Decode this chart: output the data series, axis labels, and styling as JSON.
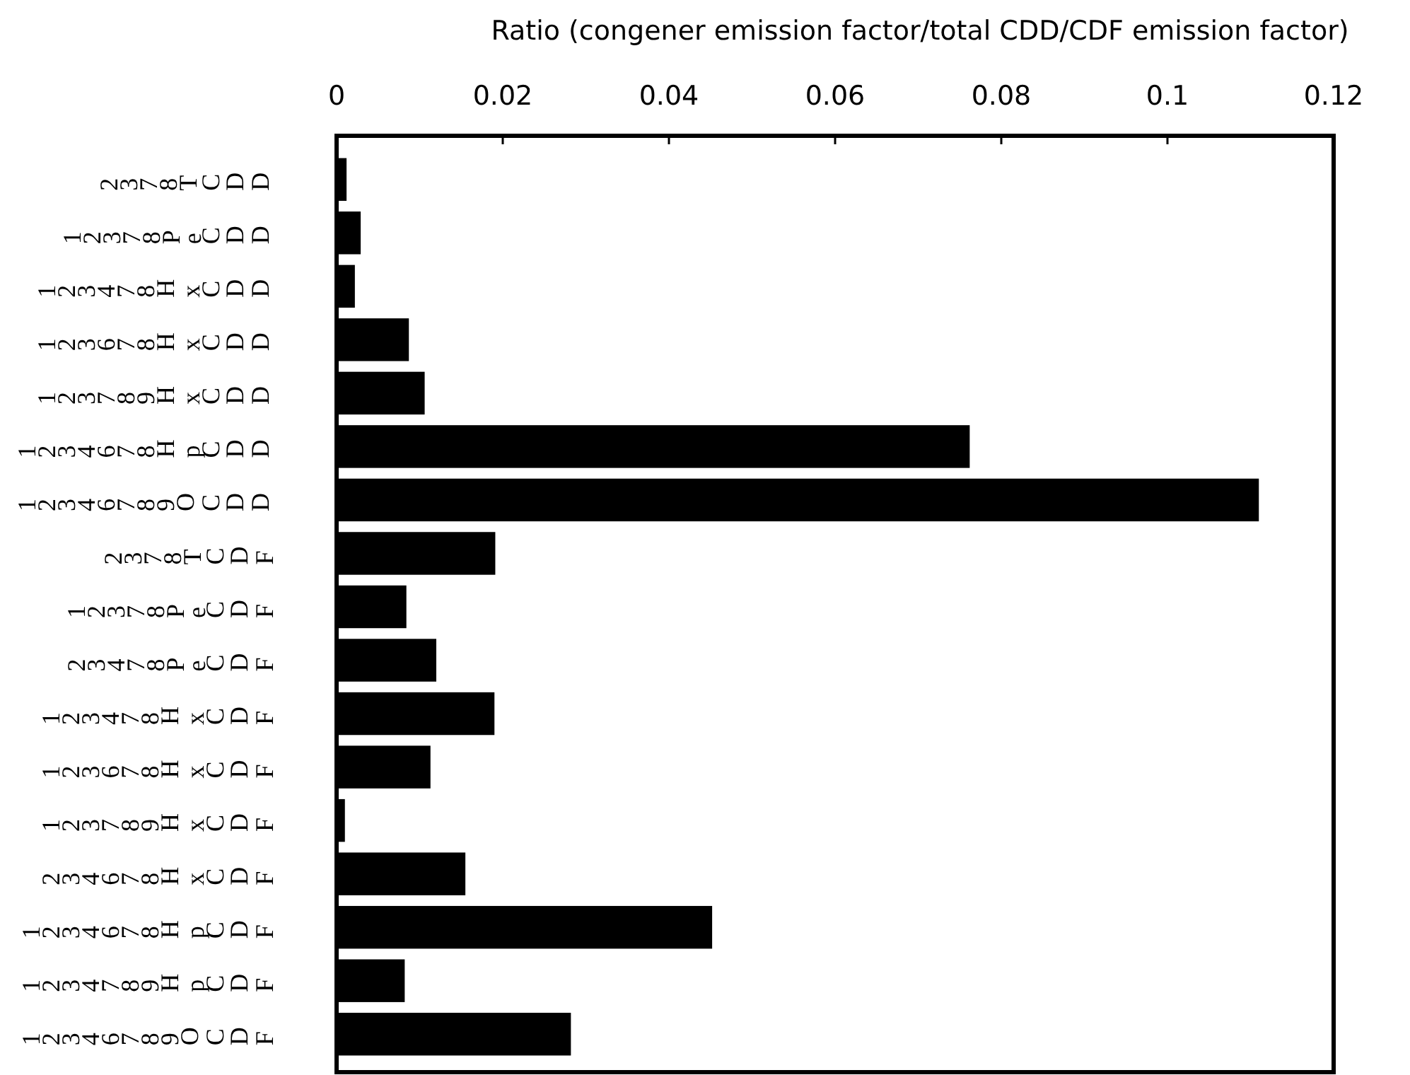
{
  "chart_data": {
    "type": "bar",
    "orientation": "horizontal",
    "xlabel": "Ratio (congener emission factor/total CDD/CDF emission factor)",
    "categories": [
      "2378TCDD",
      "12378PeCDD",
      "123478HxCDD",
      "123678HxCDD",
      "123789HxCDD",
      "1234678HpCDD",
      "12346789OCDD",
      "2378TCDF",
      "12378PeCDF",
      "23478PeCDF",
      "123478HxCDF",
      "123678HxCDF",
      "123789HxCDF",
      "234678HxCDF",
      "1234678HpCDF",
      "1234789HpCDF",
      "12346789OCDF"
    ],
    "values": [
      0.0012,
      0.0029,
      0.0022,
      0.0087,
      0.0106,
      0.0762,
      0.111,
      0.0191,
      0.0084,
      0.012,
      0.019,
      0.0113,
      0.001,
      0.0155,
      0.0452,
      0.0082,
      0.0282
    ],
    "color": "#000000",
    "xlim": [
      0,
      0.12
    ],
    "xticks": [
      0,
      0.02,
      0.04,
      0.06,
      0.08,
      0.1,
      0.12
    ],
    "grid": false
  }
}
